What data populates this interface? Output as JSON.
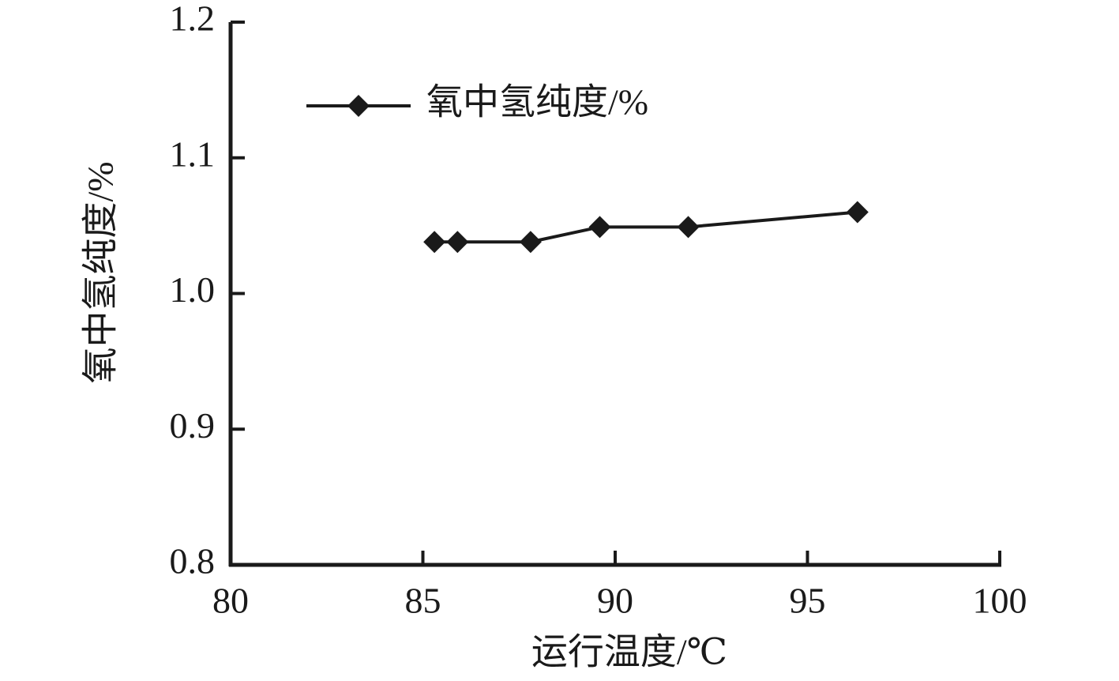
{
  "chart_data": {
    "type": "line",
    "x_label": "运行温度/℃",
    "y_label": "氧中氢纯度/%",
    "x": [
      85.3,
      85.9,
      87.8,
      89.6,
      91.9,
      96.3
    ],
    "series": [
      {
        "name": "氧中氢纯度/%",
        "color": "#1a1a1a",
        "values": [
          1.038,
          1.038,
          1.038,
          1.049,
          1.049,
          1.06
        ]
      }
    ],
    "xlim": [
      80,
      100
    ],
    "xticks": [
      80,
      85,
      90,
      95,
      100
    ],
    "ylim": [
      0.8,
      1.2
    ],
    "yticks": [
      0.8,
      0.9,
      {
        "value": 1,
        "label": "1.0"
      },
      1.1,
      1.2
    ],
    "grid": false,
    "legend": "upper left"
  }
}
